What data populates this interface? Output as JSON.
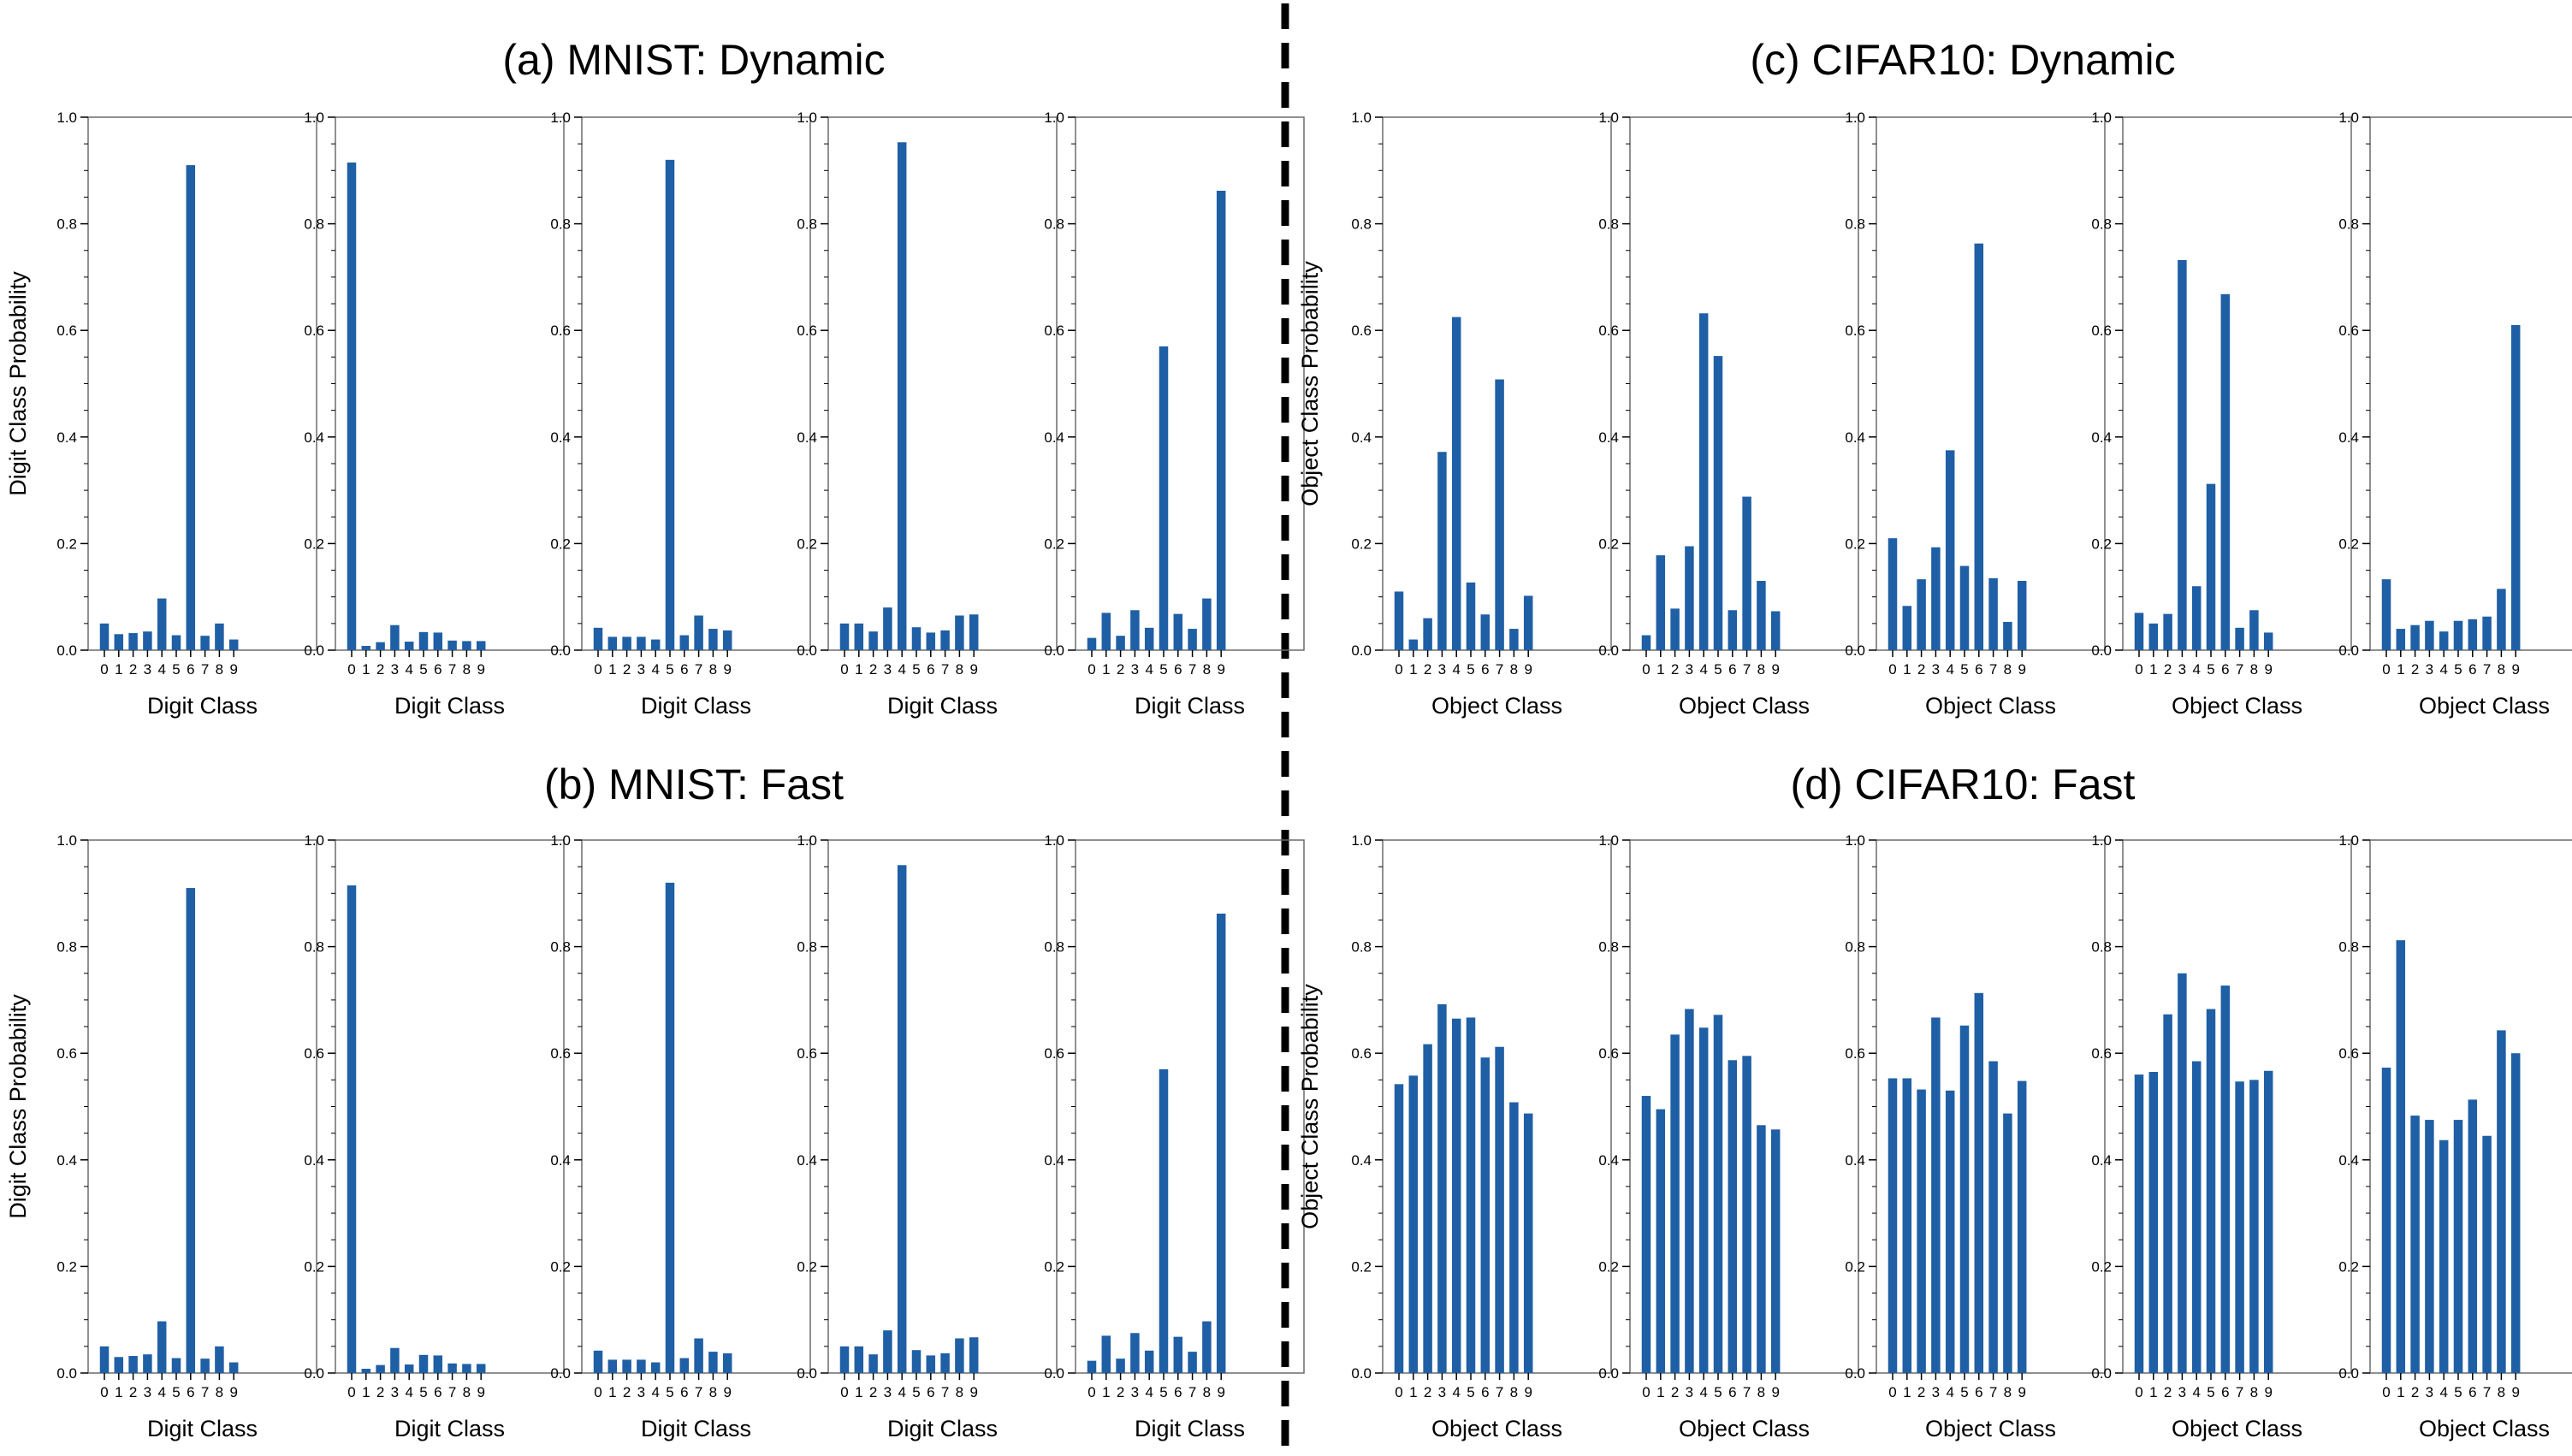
{
  "chart_data": [
    {
      "type": "bar",
      "title": "(a) MNIST: Dynamic",
      "xlabel": "Digit Class",
      "ylabel": "Digit Class Probability",
      "categories": [
        "0",
        "1",
        "2",
        "3",
        "4",
        "5",
        "6",
        "7",
        "8",
        "9"
      ],
      "ylim": [
        0,
        1.0
      ],
      "yticks": [
        "0.0",
        "0.2",
        "0.4",
        "0.6",
        "0.8",
        "1.0"
      ],
      "series": [
        {
          "values": [
            0.05,
            0.03,
            0.032,
            0.035,
            0.097,
            0.028,
            0.91,
            0.027,
            0.05,
            0.02
          ]
        },
        {
          "values": [
            0.915,
            0.008,
            0.015,
            0.047,
            0.016,
            0.034,
            0.033,
            0.018,
            0.017,
            0.017
          ]
        },
        {
          "values": [
            0.042,
            0.025,
            0.025,
            0.025,
            0.02,
            0.92,
            0.028,
            0.065,
            0.04,
            0.037
          ]
        },
        {
          "values": [
            0.05,
            0.05,
            0.035,
            0.08,
            0.953,
            0.043,
            0.033,
            0.037,
            0.065,
            0.067
          ]
        },
        {
          "values": [
            0.023,
            0.07,
            0.027,
            0.075,
            0.042,
            0.57,
            0.068,
            0.04,
            0.097,
            0.862
          ]
        }
      ]
    },
    {
      "type": "bar",
      "title": "(b) MNIST: Fast",
      "xlabel": "Digit Class",
      "ylabel": "Digit Class Probability",
      "categories": [
        "0",
        "1",
        "2",
        "3",
        "4",
        "5",
        "6",
        "7",
        "8",
        "9"
      ],
      "ylim": [
        0,
        1.0
      ],
      "yticks": [
        "0.0",
        "0.2",
        "0.4",
        "0.6",
        "0.8",
        "1.0"
      ],
      "series": [
        {
          "values": [
            0.05,
            0.03,
            0.032,
            0.035,
            0.097,
            0.028,
            0.91,
            0.027,
            0.05,
            0.02
          ]
        },
        {
          "values": [
            0.915,
            0.008,
            0.015,
            0.047,
            0.016,
            0.034,
            0.033,
            0.018,
            0.017,
            0.017
          ]
        },
        {
          "values": [
            0.042,
            0.025,
            0.025,
            0.025,
            0.02,
            0.92,
            0.028,
            0.065,
            0.04,
            0.037
          ]
        },
        {
          "values": [
            0.05,
            0.05,
            0.035,
            0.08,
            0.953,
            0.043,
            0.033,
            0.037,
            0.065,
            0.067
          ]
        },
        {
          "values": [
            0.023,
            0.07,
            0.027,
            0.075,
            0.042,
            0.57,
            0.068,
            0.04,
            0.097,
            0.862
          ]
        }
      ]
    },
    {
      "type": "bar",
      "title": "(c) CIFAR10: Dynamic",
      "xlabel": "Object Class",
      "ylabel": "Object Class Probability",
      "categories": [
        "0",
        "1",
        "2",
        "3",
        "4",
        "5",
        "6",
        "7",
        "8",
        "9"
      ],
      "ylim": [
        0,
        1.0
      ],
      "yticks": [
        "0.0",
        "0.2",
        "0.4",
        "0.6",
        "0.8",
        "1.0"
      ],
      "series": [
        {
          "values": [
            0.11,
            0.02,
            0.06,
            0.372,
            0.625,
            0.127,
            0.067,
            0.508,
            0.04,
            0.102
          ]
        },
        {
          "values": [
            0.028,
            0.178,
            0.078,
            0.195,
            0.632,
            0.552,
            0.075,
            0.288,
            0.13,
            0.073
          ]
        },
        {
          "values": [
            0.21,
            0.083,
            0.133,
            0.193,
            0.375,
            0.158,
            0.763,
            0.135,
            0.053,
            0.13
          ]
        },
        {
          "values": [
            0.07,
            0.05,
            0.068,
            0.732,
            0.12,
            0.312,
            0.668,
            0.042,
            0.075,
            0.033
          ]
        },
        {
          "values": [
            0.133,
            0.04,
            0.047,
            0.055,
            0.035,
            0.055,
            0.058,
            0.063,
            0.115,
            0.61
          ]
        }
      ]
    },
    {
      "type": "bar",
      "title": "(d) CIFAR10: Fast",
      "xlabel": "Object Class",
      "ylabel": "Object Class Probability",
      "categories": [
        "0",
        "1",
        "2",
        "3",
        "4",
        "5",
        "6",
        "7",
        "8",
        "9"
      ],
      "ylim": [
        0,
        1.0
      ],
      "yticks": [
        "0.0",
        "0.2",
        "0.4",
        "0.6",
        "0.8",
        "1.0"
      ],
      "series": [
        {
          "values": [
            0.542,
            0.558,
            0.617,
            0.692,
            0.665,
            0.667,
            0.592,
            0.612,
            0.508,
            0.487
          ]
        },
        {
          "values": [
            0.52,
            0.495,
            0.635,
            0.683,
            0.648,
            0.672,
            0.587,
            0.595,
            0.465,
            0.457
          ]
        },
        {
          "values": [
            0.553,
            0.553,
            0.532,
            0.667,
            0.53,
            0.652,
            0.713,
            0.585,
            0.487,
            0.548
          ]
        },
        {
          "values": [
            0.56,
            0.565,
            0.673,
            0.75,
            0.585,
            0.683,
            0.727,
            0.547,
            0.55,
            0.567
          ]
        },
        {
          "values": [
            0.573,
            0.812,
            0.483,
            0.475,
            0.437,
            0.475,
            0.513,
            0.445,
            0.643,
            0.6
          ]
        }
      ]
    }
  ]
}
